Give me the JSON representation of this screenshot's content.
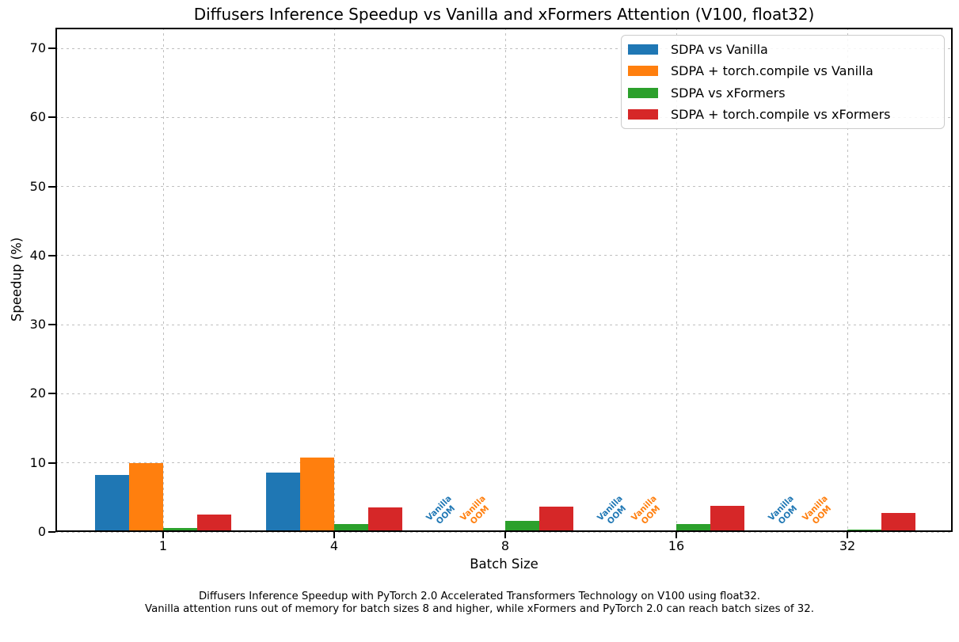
{
  "caption": {
    "line1": "Diffusers Inference Speedup with PyTorch 2.0 Accelerated Transformers Technology on V100 using float32.",
    "line2": "Vanilla attention runs out of memory for batch sizes 8 and higher, while xFormers and PyTorch 2.0 can reach batch sizes of 32."
  },
  "chart_data": {
    "type": "bar",
    "title": "Diffusers Inference Speedup vs Vanilla and xFormers Attention (V100, float32)",
    "xlabel": "Batch Size",
    "ylabel": "Speedup (%)",
    "categories": [
      "1",
      "4",
      "8",
      "16",
      "32"
    ],
    "yticks": [
      0,
      10,
      20,
      30,
      40,
      50,
      60,
      70
    ],
    "ylim": [
      0,
      73
    ],
    "grid": true,
    "grid_style": "dashed",
    "legend_position": "upper right",
    "series": [
      {
        "name": "SDPA vs Vanilla",
        "color": "#1f77b4",
        "values": [
          8.2,
          8.6,
          null,
          null,
          null
        ]
      },
      {
        "name": "SDPA + torch.compile vs Vanilla",
        "color": "#ff7f0e",
        "values": [
          10.0,
          10.8,
          null,
          null,
          null
        ]
      },
      {
        "name": "SDPA vs xFormers",
        "color": "#2ca02c",
        "values": [
          0.6,
          1.1,
          1.6,
          1.2,
          0.3
        ]
      },
      {
        "name": "SDPA + torch.compile vs xFormers",
        "color": "#d62728",
        "values": [
          2.5,
          3.6,
          3.7,
          3.8,
          2.7
        ]
      }
    ],
    "oom_annotation": {
      "text_lines": [
        "Vanilla",
        "OOM"
      ],
      "rotation_deg": 45,
      "note": "shown where a series value is null (vanilla attention out of memory)"
    }
  }
}
